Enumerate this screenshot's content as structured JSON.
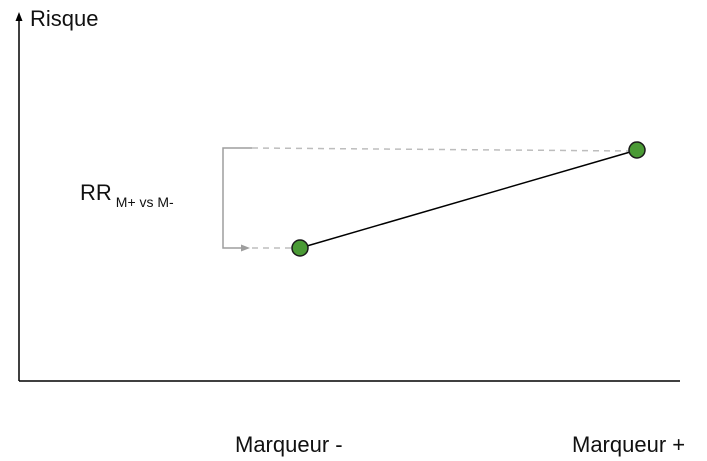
{
  "diagram": {
    "y_axis_title": "Risque",
    "x_labels": {
      "negative": "Marqueur -",
      "positive": "Marqueur +"
    },
    "ratio_label": {
      "main": "RR",
      "subscript": "M+ vs M-"
    },
    "colors": {
      "axis": "#000000",
      "point_fill": "#4a9a35",
      "point_stroke": "#1a1a1a",
      "connector_line": "#000000",
      "dashed_guide": "#bdbdbd",
      "bracket": "#9e9e9e"
    }
  }
}
